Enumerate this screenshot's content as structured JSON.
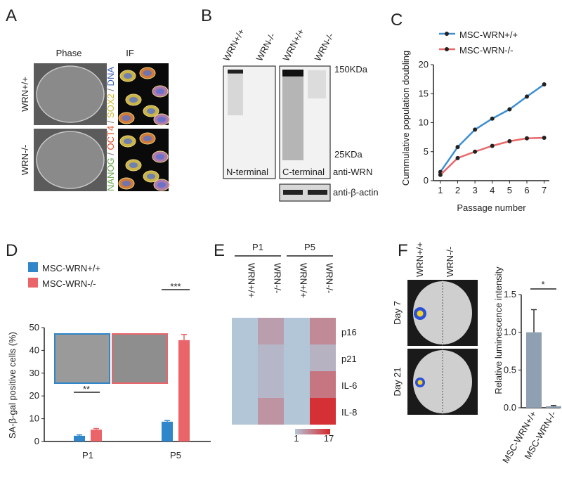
{
  "figure": {
    "A": {
      "letter": "A",
      "columns": [
        "Phase",
        "IF"
      ],
      "rows": [
        "WRN+/+",
        "WRN-/-"
      ],
      "stains": [
        "NANOG",
        " / ",
        "OCT4",
        " / ",
        "SOX2",
        " / ",
        "DNA"
      ],
      "stain_colors": [
        "#6aa84f",
        "#777777",
        "#e0502a",
        "#777777",
        "#cdb82e",
        "#777777",
        "#3f63b8"
      ]
    },
    "B": {
      "letter": "B",
      "lanes": [
        "WRN+/+",
        "WRN-/-",
        "WRN+/+",
        "WRN-/-"
      ],
      "markers": [
        "150KDa",
        "25KDa"
      ],
      "blots": [
        "N-terminal",
        "C-terminal"
      ],
      "antibodies": [
        "anti-WRN",
        "anti-β-actin"
      ]
    },
    "F": {
      "images": [
        "Day 7",
        "Day 21"
      ],
      "image_columns": [
        "WRN+/+",
        "WRN-/-"
      ]
    }
  },
  "chart_data": [
    {
      "type": "line",
      "panel": "C",
      "ylabel": "Cummulative population doubling",
      "xlabel": "Passage number",
      "x": [
        1,
        2,
        3,
        4,
        5,
        6,
        7
      ],
      "series": [
        {
          "name": "MSC-WRN+/+",
          "color": "#3d8fd1",
          "values": [
            1.5,
            5.8,
            8.8,
            10.7,
            12.3,
            14.5,
            16.6
          ]
        },
        {
          "name": "MSC-WRN-/-",
          "color": "#e8686a",
          "values": [
            1.0,
            3.9,
            5.0,
            6.0,
            6.8,
            7.3,
            7.4
          ]
        }
      ],
      "xlim": [
        0.6,
        7.3
      ],
      "xticks": [
        1,
        2,
        3,
        4,
        5,
        6,
        7
      ],
      "ylim": [
        0,
        20
      ],
      "yticks": [
        0,
        5,
        10,
        15,
        20
      ],
      "legend": "top-left"
    },
    {
      "type": "bar",
      "panel": "D",
      "ylabel": "SA-β-gal positive cells (%)",
      "categories": [
        "P1",
        "P5"
      ],
      "series": [
        {
          "name": "MSC-WRN+/+",
          "color": "#2f86c8",
          "values": [
            2.5,
            8.7
          ],
          "errors": [
            0.4,
            0.5
          ]
        },
        {
          "name": "MSC-WRN-/-",
          "color": "#e9656a",
          "values": [
            5.2,
            44.5
          ],
          "errors": [
            0.5,
            2.5
          ]
        }
      ],
      "ylim": [
        0,
        50
      ],
      "yticks": [
        0,
        10,
        20,
        30,
        40,
        50
      ],
      "annotations": [
        "**",
        "***"
      ],
      "legend": "top-left"
    },
    {
      "type": "heatmap",
      "panel": "E",
      "groups": [
        "P1",
        "P5"
      ],
      "columns": [
        "WRN+/+",
        "WRN-/-",
        "WRN+/+",
        "WRN-/-"
      ],
      "rows": [
        "p16",
        "p21",
        "IL-6",
        "IL-8"
      ],
      "values": [
        [
          1,
          5,
          1,
          7
        ],
        [
          1,
          2.5,
          1,
          3
        ],
        [
          1,
          2.5,
          1,
          9
        ],
        [
          1,
          6,
          1,
          16
        ]
      ],
      "clim": [
        1,
        17
      ],
      "colors": [
        "#b2c6d8",
        "#d7262a"
      ]
    },
    {
      "type": "bar",
      "panel": "F",
      "ylabel": "Relative luminescence intensity",
      "categories": [
        "MSC-WRN+/+",
        "MSC-WRN-/-"
      ],
      "values": [
        1.0,
        0.02
      ],
      "errors": [
        0.3,
        0.01
      ],
      "color": "#8fa0b2",
      "ylim": [
        0,
        1.5
      ],
      "yticks": [
        {
          "value": 0,
          "label": "0.0"
        },
        0.5,
        {
          "value": 1,
          "label": "1.0"
        },
        1.5
      ],
      "annotations": [
        "*"
      ]
    }
  ]
}
